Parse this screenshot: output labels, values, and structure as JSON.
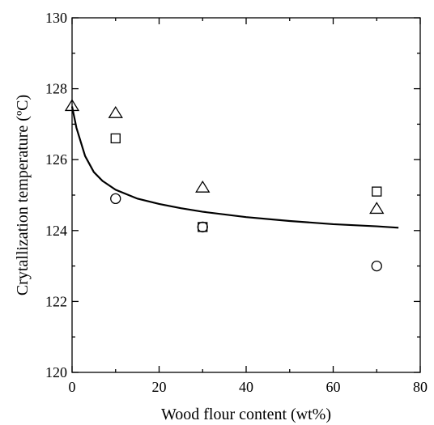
{
  "chart_data": {
    "type": "scatter",
    "title": "",
    "xlabel": "Wood flour content (wt%)",
    "ylabel": "Crytallization temperature (ºC)",
    "xlim": [
      0,
      80
    ],
    "ylim": [
      120,
      130
    ],
    "x_ticks": [
      0,
      20,
      40,
      60,
      80
    ],
    "y_ticks": [
      120,
      122,
      124,
      126,
      128,
      130
    ],
    "grid": false,
    "legend": "none",
    "series": [
      {
        "marker": "triangle",
        "x": [
          0,
          10,
          30,
          70
        ],
        "y": [
          127.5,
          127.3,
          125.2,
          124.6
        ]
      },
      {
        "marker": "square",
        "x": [
          10,
          30,
          70
        ],
        "y": [
          126.6,
          124.1,
          125.1
        ]
      },
      {
        "marker": "circle",
        "x": [
          10,
          30,
          70
        ],
        "y": [
          124.9,
          124.1,
          123.0
        ]
      }
    ],
    "fit_curve": {
      "x": [
        0,
        1,
        2,
        3,
        5,
        7,
        10,
        15,
        20,
        25,
        30,
        40,
        50,
        60,
        70,
        75
      ],
      "y": [
        127.5,
        126.9,
        126.5,
        126.1,
        125.65,
        125.4,
        125.15,
        124.9,
        124.75,
        124.63,
        124.53,
        124.38,
        124.27,
        124.18,
        124.12,
        124.08
      ]
    }
  }
}
